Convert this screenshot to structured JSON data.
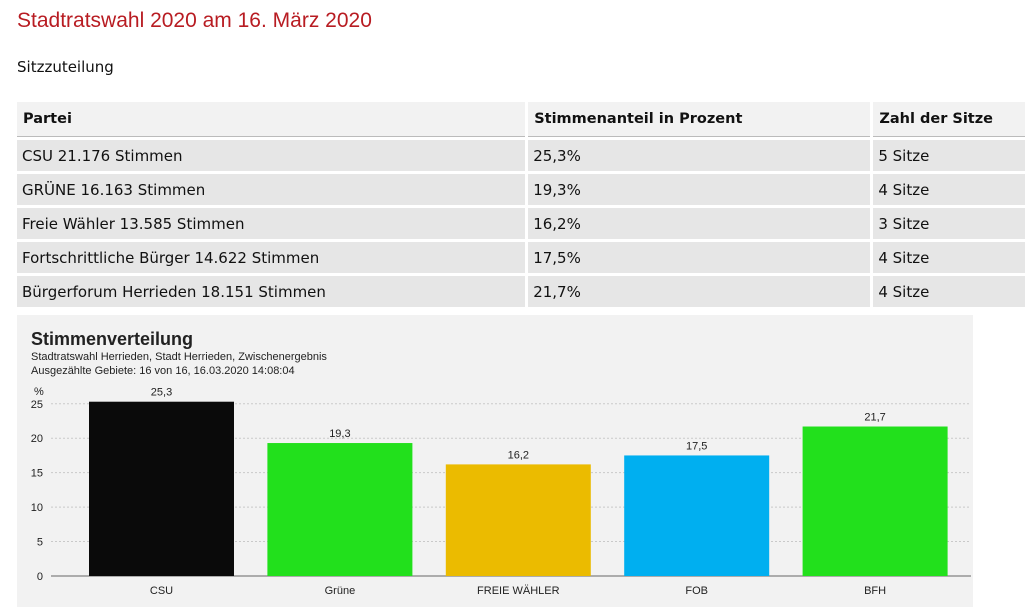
{
  "page": {
    "title": "Stadtratswahl 2020 am 16. März 2020",
    "section_label": "Sitzzuteilung",
    "title_color": "#b81c22"
  },
  "table": {
    "headers": [
      "Partei",
      "Stimmenanteil in Prozent",
      "Zahl der Sitze"
    ],
    "rows": [
      [
        "CSU 21.176 Stimmen",
        "25,3%",
        "5 Sitze"
      ],
      [
        "GRÜNE 16.163 Stimmen",
        "19,3%",
        "4 Sitze"
      ],
      [
        "Freie Wähler 13.585 Stimmen",
        "16,2%",
        "3 Sitze"
      ],
      [
        "Fortschrittliche Bürger 14.622 Stimmen",
        "17,5%",
        "4 Sitze"
      ],
      [
        "Bürgerforum Herrieden 18.151 Stimmen",
        "21,7%",
        "4 Sitze"
      ]
    ]
  },
  "chart_data": {
    "type": "bar",
    "title": "Stimmenverteilung",
    "subtitle": "Stadtratswahl Herrieden, Stadt Herrieden, Zwischenergebnis",
    "subtitle2": "Ausgezählte Gebiete: 16 von 16, 16.03.2020 14:08:04",
    "ylabel": "%",
    "ylim": [
      0,
      27
    ],
    "yticks": [
      0,
      5,
      10,
      15,
      20,
      25
    ],
    "grid": true,
    "categories": [
      "CSU",
      "Grüne",
      "FREIE WÄHLER",
      "FOB",
      "BFH"
    ],
    "values": [
      25.3,
      19.3,
      16.2,
      17.5,
      21.7
    ],
    "value_labels": [
      "25,3",
      "19,3",
      "16,2",
      "17,5",
      "21,7"
    ],
    "colors": [
      "#0a0a0a",
      "#22e01c",
      "#ebbb00",
      "#00aff0",
      "#22e01c"
    ]
  }
}
